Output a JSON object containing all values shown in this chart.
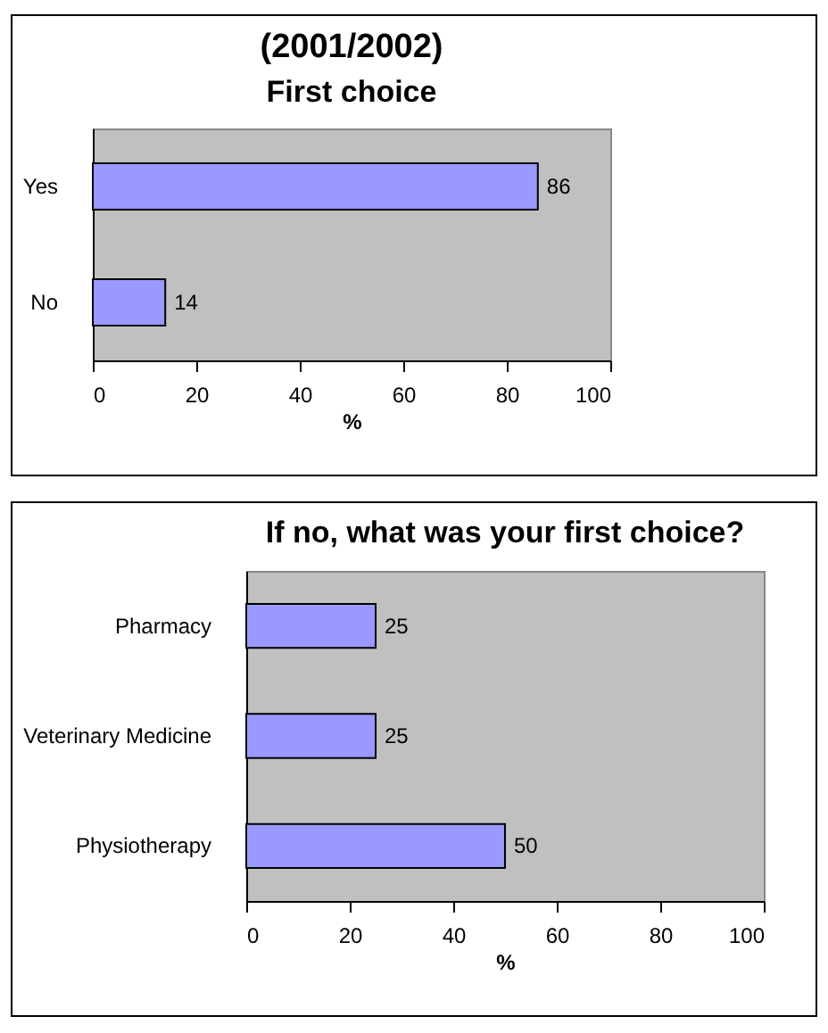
{
  "chart_data": [
    {
      "type": "bar",
      "title": "(2001/2002)",
      "subtitle": "First choice",
      "orientation": "horizontal",
      "categories": [
        "Yes",
        "No"
      ],
      "series": [
        {
          "color": "#9999ff",
          "values": [
            86,
            14
          ]
        }
      ],
      "xlabel": "%",
      "xlim": [
        0,
        100
      ],
      "xticks": [
        0,
        20,
        40,
        60,
        80,
        100
      ],
      "data_labels": true,
      "grid": false,
      "legend": false
    },
    {
      "type": "bar",
      "title": "If no, what was your first choice?",
      "orientation": "horizontal",
      "categories": [
        "Pharmacy",
        "Veterinary Medicine",
        "Physiotherapy"
      ],
      "series": [
        {
          "color": "#9999ff",
          "values": [
            25,
            25,
            50
          ]
        }
      ],
      "xlabel": "%",
      "xlim": [
        0,
        100
      ],
      "xticks": [
        0,
        20,
        40,
        60,
        80,
        100
      ],
      "data_labels": true,
      "grid": false,
      "legend": false
    }
  ]
}
